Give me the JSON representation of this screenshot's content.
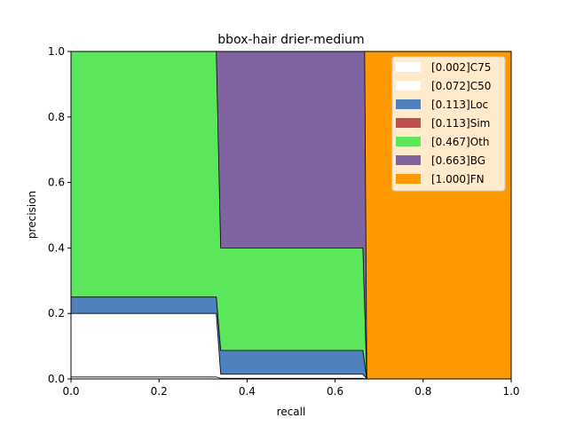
{
  "chart_data": {
    "type": "area",
    "title": "bbox-hair drier-medium",
    "xlabel": "recall",
    "ylabel": "precision",
    "xlim": [
      0,
      1
    ],
    "ylim": [
      0,
      1
    ],
    "xticks": [
      "0.0",
      "0.2",
      "0.4",
      "0.6",
      "0.8",
      "1.0"
    ],
    "yticks": [
      "0.0",
      "0.2",
      "0.4",
      "0.6",
      "0.8",
      "1.0"
    ],
    "grid": false,
    "legend_position": "upper-right",
    "stacking": "cumulative precision curves drawn back to front",
    "series": [
      {
        "name": "[1.000]FN",
        "color": "#ff9900",
        "points": [
          [
            0,
            1
          ],
          [
            1,
            1
          ]
        ]
      },
      {
        "name": "[0.663]BG",
        "color": "#8064a2",
        "points": [
          [
            0,
            1
          ],
          [
            0.667,
            1
          ],
          [
            0.672,
            0
          ]
        ]
      },
      {
        "name": "[0.467]Oth",
        "color": "#5ce65c",
        "points": [
          [
            0,
            1
          ],
          [
            0.33,
            1
          ],
          [
            0.34,
            0.4
          ],
          [
            0.663,
            0.4
          ],
          [
            0.672,
            0
          ]
        ]
      },
      {
        "name": "[0.113]Sim",
        "color": "#c0504d",
        "points": [
          [
            0,
            0.25
          ],
          [
            0.33,
            0.25
          ],
          [
            0.34,
            0.087
          ],
          [
            0.663,
            0.087
          ],
          [
            0.672,
            0
          ]
        ]
      },
      {
        "name": "[0.113]Loc",
        "color": "#4f81bd",
        "points": [
          [
            0,
            0.25
          ],
          [
            0.33,
            0.25
          ],
          [
            0.34,
            0.087
          ],
          [
            0.663,
            0.087
          ],
          [
            0.672,
            0
          ]
        ]
      },
      {
        "name": "[0.072]C50",
        "color": "#ffffff",
        "points": [
          [
            0,
            0.2
          ],
          [
            0.33,
            0.2
          ],
          [
            0.34,
            0.015
          ],
          [
            0.663,
            0.015
          ],
          [
            0.672,
            0
          ]
        ]
      },
      {
        "name": "[0.002]C75",
        "color": "#ffffff",
        "points": [
          [
            0,
            0.006
          ],
          [
            0.33,
            0.006
          ],
          [
            0.34,
            0.002
          ],
          [
            0.663,
            0.002
          ],
          [
            0.672,
            0
          ]
        ]
      }
    ],
    "legend": [
      "[0.002]C75",
      "[0.072]C50",
      "[0.113]Loc",
      "[0.113]Sim",
      "[0.467]Oth",
      "[0.663]BG",
      "[1.000]FN"
    ]
  }
}
